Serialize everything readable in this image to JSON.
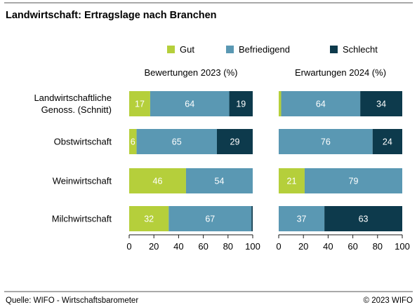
{
  "title": "Landwirtschaft: Ertragslage nach Branchen",
  "source": "Quelle: WIFO - Wirtschaftsbarometer",
  "copyright": "© 2023 WIFO",
  "colors": {
    "Gut": "#b5cf3b",
    "Befriedigend": "#5a98b3",
    "Schlecht": "#0d3a4c"
  },
  "chart_data": [
    {
      "type": "bar",
      "orientation": "horizontal",
      "stacked": true,
      "title": "Bewertungen 2023 (%)",
      "categories": [
        [
          "Landwirtschaftliche",
          "Genoss. (Schnitt)"
        ],
        [
          "Obstwirtschaft"
        ],
        [
          "Weinwirtschaft"
        ],
        [
          "Milchwirtschaft"
        ]
      ],
      "series": [
        {
          "name": "Gut",
          "values": [
            17,
            6,
            46,
            32
          ],
          "labels": [
            "17",
            "6",
            "46",
            "32"
          ]
        },
        {
          "name": "Befriedigend",
          "values": [
            64,
            65,
            54,
            67
          ],
          "labels": [
            "64",
            "65",
            "54",
            "67"
          ]
        },
        {
          "name": "Schlecht",
          "values": [
            19,
            29,
            0,
            1
          ],
          "labels": [
            "19",
            "29",
            "",
            ""
          ]
        }
      ],
      "xlim": [
        0,
        100
      ],
      "xticks": [
        0,
        20,
        40,
        60,
        80,
        100
      ],
      "legend": "top",
      "grid": false
    },
    {
      "type": "bar",
      "orientation": "horizontal",
      "stacked": true,
      "title": "Erwartungen 2024 (%)",
      "categories": [
        [
          "Landwirtschaftliche",
          "Genoss. (Schnitt)"
        ],
        [
          "Obstwirtschaft"
        ],
        [
          "Weinwirtschaft"
        ],
        [
          "Milchwirtschaft"
        ]
      ],
      "series": [
        {
          "name": "Gut",
          "values": [
            2,
            0,
            21,
            0
          ],
          "labels": [
            "",
            "",
            "21",
            ""
          ]
        },
        {
          "name": "Befriedigend",
          "values": [
            64,
            76,
            79,
            37
          ],
          "labels": [
            "64",
            "76",
            "79",
            "37"
          ]
        },
        {
          "name": "Schlecht",
          "values": [
            34,
            24,
            0,
            63
          ],
          "labels": [
            "34",
            "24",
            "",
            "63"
          ]
        }
      ],
      "xlim": [
        0,
        100
      ],
      "xticks": [
        0,
        20,
        40,
        60,
        80,
        100
      ],
      "legend": "top",
      "grid": false
    }
  ]
}
